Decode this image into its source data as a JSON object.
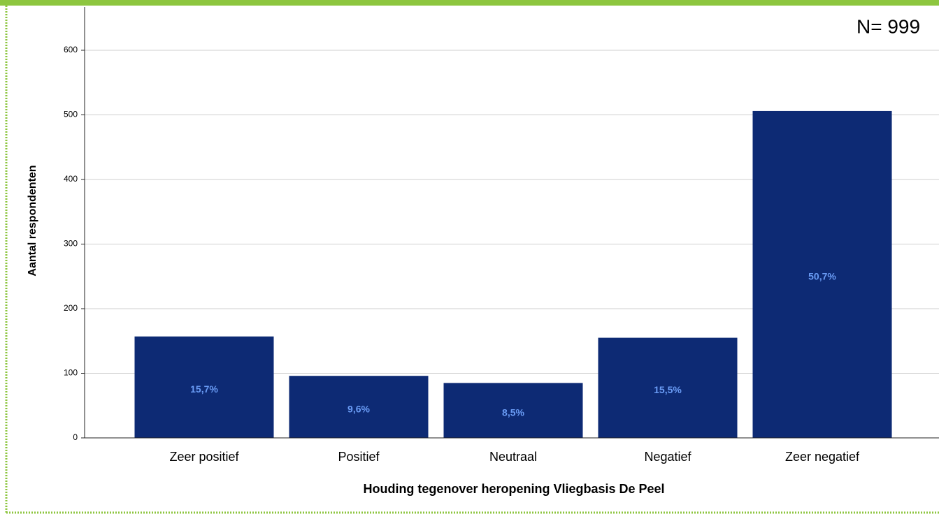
{
  "chart_data": {
    "type": "bar",
    "annotation": "N= 999",
    "x_label": "Houding tegenover heropening Vliegbasis De Peel",
    "y_label": "Aantal respondenten",
    "categories": [
      "Zeer positief",
      "Positief",
      "Neutraal",
      "Negatief",
      "Zeer negatief"
    ],
    "values": [
      157,
      96,
      85,
      155,
      506
    ],
    "percent_labels": [
      "15,7%",
      "9,6%",
      "8,5%",
      "15,5%",
      "50,7%"
    ],
    "color": "#0d2a74",
    "ylim": [
      0,
      667
    ],
    "yticks": [
      0,
      100,
      200,
      300,
      400,
      500,
      600
    ],
    "grid": true
  }
}
